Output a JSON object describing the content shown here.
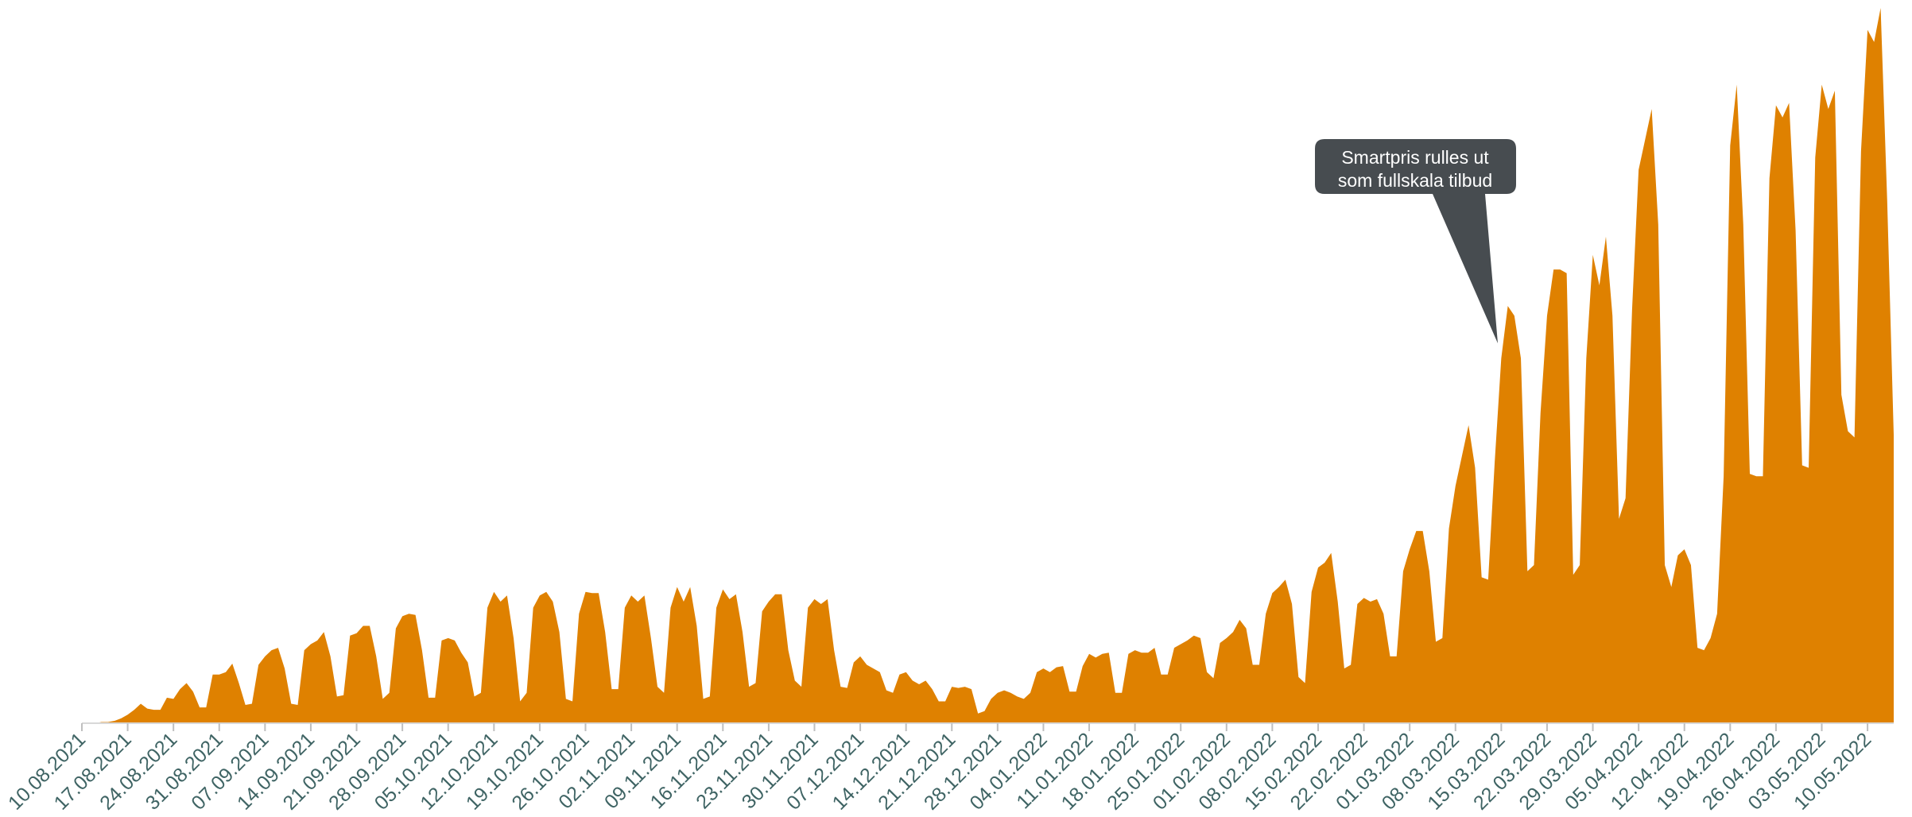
{
  "chart_data": {
    "type": "area",
    "color": "#df8100",
    "ylim": [
      0,
      590
    ],
    "annotation": [
      "Smartpris rulles ut",
      "som fullskala tilbud"
    ],
    "xticks": [
      "10.08.2021",
      "17.08.2021",
      "24.08.2021",
      "31.08.2021",
      "07.09.2021",
      "14.09.2021",
      "21.09.2021",
      "28.09.2021",
      "05.10.2021",
      "12.10.2021",
      "19.10.2021",
      "26.10.2021",
      "02.11.2021",
      "09.11.2021",
      "16.11.2021",
      "23.11.2021",
      "30.11.2021",
      "07.12.2021",
      "14.12.2021",
      "21.12.2021",
      "28.12.2021",
      "04.01.2022",
      "11.01.2022",
      "18.01.2022",
      "25.01.2022",
      "01.02.2022",
      "08.02.2022",
      "15.02.2022",
      "22.02.2022",
      "01.03.2022",
      "08.03.2022",
      "15.03.2022",
      "22.03.2022",
      "29.03.2022",
      "05.04.2022",
      "12.04.2022",
      "19.04.2022",
      "26.04.2022",
      "03.05.2022",
      "10.05.2022"
    ],
    "x": [
      "10.08.2021",
      "11.08.2021",
      "12.08.2021",
      "13.08.2021",
      "14.08.2021",
      "15.08.2021",
      "16.08.2021",
      "17.08.2021",
      "18.08.2021",
      "19.08.2021",
      "20.08.2021",
      "21.08.2021",
      "22.08.2021",
      "23.08.2021",
      "24.08.2021",
      "25.08.2021",
      "26.08.2021",
      "27.08.2021",
      "28.08.2021",
      "29.08.2021",
      "30.08.2021",
      "31.08.2021",
      "01.09.2021",
      "02.09.2021",
      "03.09.2021",
      "04.09.2021",
      "05.09.2021",
      "06.09.2021",
      "07.09.2021",
      "08.09.2021",
      "09.09.2021",
      "10.09.2021",
      "11.09.2021",
      "12.09.2021",
      "13.09.2021",
      "14.09.2021",
      "15.09.2021",
      "16.09.2021",
      "17.09.2021",
      "18.09.2021",
      "19.09.2021",
      "20.09.2021",
      "21.09.2021",
      "22.09.2021",
      "23.09.2021",
      "24.09.2021",
      "25.09.2021",
      "26.09.2021",
      "27.09.2021",
      "28.09.2021",
      "29.09.2021",
      "30.09.2021",
      "01.10.2021",
      "02.10.2021",
      "03.10.2021",
      "04.10.2021",
      "05.10.2021",
      "06.10.2021",
      "07.10.2021",
      "08.10.2021",
      "09.10.2021",
      "10.10.2021",
      "11.10.2021",
      "12.10.2021",
      "13.10.2021",
      "14.10.2021",
      "15.10.2021",
      "16.10.2021",
      "17.10.2021",
      "18.10.2021",
      "19.10.2021",
      "20.10.2021",
      "21.10.2021",
      "22.10.2021",
      "23.10.2021",
      "24.10.2021",
      "25.10.2021",
      "26.10.2021",
      "27.10.2021",
      "28.10.2021",
      "29.10.2021",
      "30.10.2021",
      "31.10.2021",
      "01.11.2021",
      "02.11.2021",
      "03.11.2021",
      "04.11.2021",
      "05.11.2021",
      "06.11.2021",
      "07.11.2021",
      "08.11.2021",
      "09.11.2021",
      "10.11.2021",
      "11.11.2021",
      "12.11.2021",
      "13.11.2021",
      "14.11.2021",
      "15.11.2021",
      "16.11.2021",
      "17.11.2021",
      "18.11.2021",
      "19.11.2021",
      "20.11.2021",
      "21.11.2021",
      "22.11.2021",
      "23.11.2021",
      "24.11.2021",
      "25.11.2021",
      "26.11.2021",
      "27.11.2021",
      "28.11.2021",
      "29.11.2021",
      "30.11.2021",
      "01.12.2021",
      "02.12.2021",
      "03.12.2021",
      "04.12.2021",
      "05.12.2021",
      "06.12.2021",
      "07.12.2021",
      "08.12.2021",
      "09.12.2021",
      "10.12.2021",
      "11.12.2021",
      "12.12.2021",
      "13.12.2021",
      "14.12.2021",
      "15.12.2021",
      "16.12.2021",
      "17.12.2021",
      "18.12.2021",
      "19.12.2021",
      "20.12.2021",
      "21.12.2021",
      "22.12.2021",
      "23.12.2021",
      "24.12.2021",
      "25.12.2021",
      "26.12.2021",
      "27.12.2021",
      "28.12.2021",
      "29.12.2021",
      "30.12.2021",
      "31.12.2021",
      "01.01.2022",
      "02.01.2022",
      "03.01.2022",
      "04.01.2022",
      "05.01.2022",
      "06.01.2022",
      "07.01.2022",
      "08.01.2022",
      "09.01.2022",
      "10.01.2022",
      "11.01.2022",
      "12.01.2022",
      "13.01.2022",
      "14.01.2022",
      "15.01.2022",
      "16.01.2022",
      "17.01.2022",
      "18.01.2022",
      "19.01.2022",
      "20.01.2022",
      "21.01.2022",
      "22.01.2022",
      "23.01.2022",
      "24.01.2022",
      "25.01.2022",
      "26.01.2022",
      "27.01.2022",
      "28.01.2022",
      "29.01.2022",
      "30.01.2022",
      "31.01.2022",
      "01.02.2022",
      "02.02.2022",
      "03.02.2022",
      "04.02.2022",
      "05.02.2022",
      "06.02.2022",
      "07.02.2022",
      "08.02.2022",
      "09.02.2022",
      "10.02.2022",
      "11.02.2022",
      "12.02.2022",
      "13.02.2022",
      "14.02.2022",
      "15.02.2022",
      "16.02.2022",
      "17.02.2022",
      "18.02.2022",
      "19.02.2022",
      "20.02.2022",
      "21.02.2022",
      "22.02.2022",
      "23.02.2022",
      "24.02.2022",
      "25.02.2022",
      "26.02.2022",
      "27.02.2022",
      "28.02.2022",
      "01.03.2022",
      "02.03.2022",
      "03.03.2022",
      "04.03.2022",
      "05.03.2022",
      "06.03.2022",
      "07.03.2022",
      "08.03.2022",
      "09.03.2022",
      "10.03.2022",
      "11.03.2022",
      "12.03.2022",
      "13.03.2022",
      "14.03.2022",
      "15.03.2022",
      "16.03.2022",
      "17.03.2022",
      "18.03.2022",
      "19.03.2022",
      "20.03.2022",
      "21.03.2022",
      "22.03.2022",
      "23.03.2022",
      "24.03.2022",
      "25.03.2022",
      "26.03.2022",
      "27.03.2022",
      "28.03.2022",
      "29.03.2022",
      "30.03.2022",
      "31.03.2022",
      "01.04.2022",
      "02.04.2022",
      "03.04.2022",
      "04.04.2022",
      "05.04.2022",
      "06.04.2022",
      "07.04.2022",
      "08.04.2022",
      "09.04.2022",
      "10.04.2022",
      "11.04.2022",
      "12.04.2022",
      "13.04.2022",
      "14.04.2022",
      "15.04.2022",
      "16.04.2022",
      "17.04.2022",
      "18.04.2022",
      "19.04.2022",
      "20.04.2022",
      "21.04.2022",
      "22.04.2022",
      "23.04.2022",
      "24.04.2022",
      "25.04.2022",
      "26.04.2022",
      "27.04.2022",
      "28.04.2022",
      "29.04.2022",
      "30.04.2022",
      "01.05.2022",
      "02.05.2022",
      "03.05.2022",
      "04.05.2022",
      "05.05.2022",
      "06.05.2022",
      "07.05.2022",
      "08.05.2022",
      "09.05.2022",
      "10.05.2022",
      "11.05.2022",
      "12.05.2022",
      "13.05.2022",
      "14.05.2022"
    ],
    "values": [
      0,
      0,
      0,
      1,
      1,
      2,
      4,
      7,
      11,
      16,
      12,
      11,
      11,
      21,
      20,
      28,
      33,
      26,
      13,
      13,
      40,
      40,
      42,
      49,
      33,
      15,
      16,
      48,
      55,
      60,
      62,
      45,
      16,
      15,
      60,
      65,
      68,
      75,
      55,
      22,
      23,
      72,
      74,
      80,
      80,
      55,
      20,
      25,
      78,
      88,
      90,
      89,
      60,
      21,
      21,
      68,
      70,
      68,
      58,
      50,
      22,
      25,
      95,
      108,
      100,
      105,
      70,
      18,
      25,
      95,
      105,
      108,
      100,
      75,
      20,
      18,
      90,
      108,
      107,
      107,
      75,
      28,
      28,
      95,
      105,
      100,
      105,
      70,
      30,
      25,
      95,
      112,
      100,
      112,
      80,
      20,
      22,
      95,
      110,
      102,
      106,
      75,
      30,
      33,
      92,
      100,
      106,
      106,
      60,
      35,
      30,
      95,
      102,
      98,
      102,
      60,
      30,
      29,
      50,
      55,
      48,
      45,
      42,
      27,
      25,
      40,
      42,
      35,
      32,
      35,
      28,
      18,
      18,
      30,
      29,
      30,
      28,
      8,
      10,
      20,
      25,
      27,
      25,
      22,
      20,
      25,
      42,
      45,
      42,
      46,
      47,
      26,
      26,
      47,
      57,
      54,
      57,
      58,
      25,
      25,
      57,
      60,
      58,
      58,
      62,
      40,
      40,
      62,
      65,
      68,
      72,
      70,
      42,
      37,
      66,
      70,
      75,
      85,
      78,
      48,
      48,
      90,
      107,
      112,
      118,
      98,
      38,
      33,
      108,
      128,
      132,
      140,
      100,
      45,
      48,
      98,
      103,
      100,
      102,
      90,
      55,
      55,
      125,
      143,
      158,
      158,
      125,
      67,
      70,
      160,
      195,
      220,
      245,
      210,
      120,
      118,
      215,
      300,
      343,
      335,
      300,
      125,
      130,
      255,
      335,
      373,
      373,
      370,
      122,
      130,
      300,
      385,
      360,
      400,
      335,
      168,
      185,
      340,
      455,
      480,
      505,
      410,
      130,
      112,
      138,
      143,
      130,
      62,
      60,
      70,
      90,
      203,
      475,
      525,
      410,
      205,
      203,
      203,
      448,
      508,
      498,
      510,
      405,
      212,
      210,
      465,
      525,
      505,
      520,
      270,
      240,
      235,
      470,
      570,
      560,
      588,
      430,
      237
    ]
  }
}
